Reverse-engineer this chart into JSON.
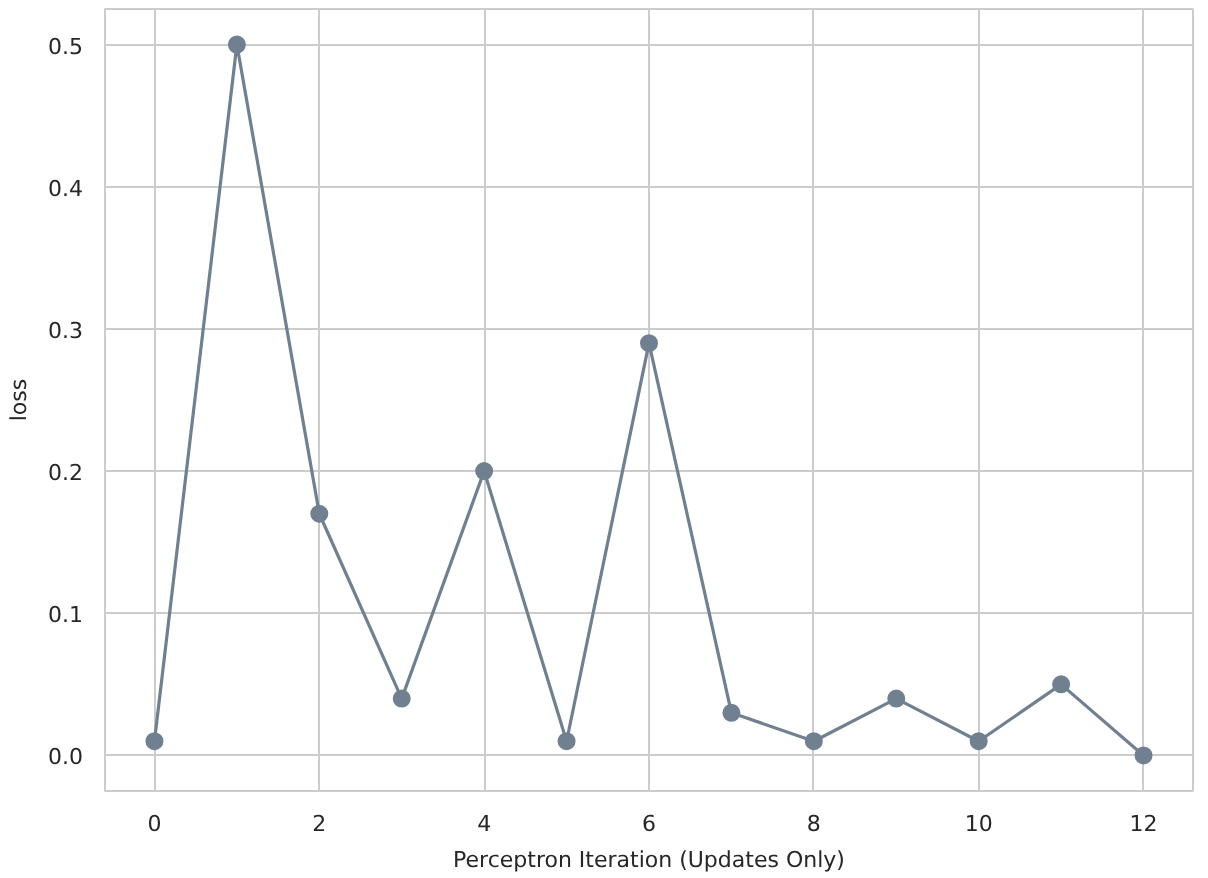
{
  "chart_data": {
    "type": "line",
    "xlabel": "Perceptron Iteration (Updates Only)",
    "ylabel": "loss",
    "x": [
      0,
      1,
      2,
      3,
      4,
      5,
      6,
      7,
      8,
      9,
      10,
      11,
      12
    ],
    "series": [
      {
        "color": "#708090",
        "values": [
          0.01,
          0.5,
          0.17,
          0.04,
          0.2,
          0.01,
          0.29,
          0.03,
          0.01,
          0.04,
          0.01,
          0.05,
          0.0
        ]
      }
    ],
    "xlim": [
      -0.6,
      12.6
    ],
    "ylim": [
      -0.025,
      0.525
    ],
    "xticks": [
      0,
      2,
      4,
      6,
      8,
      10,
      12
    ],
    "yticks": [
      {
        "value": 0,
        "label": "0.0"
      },
      0.1,
      0.2,
      0.3,
      0.4,
      0.5
    ],
    "grid": true,
    "marker": "circle",
    "line_style": "solid"
  }
}
